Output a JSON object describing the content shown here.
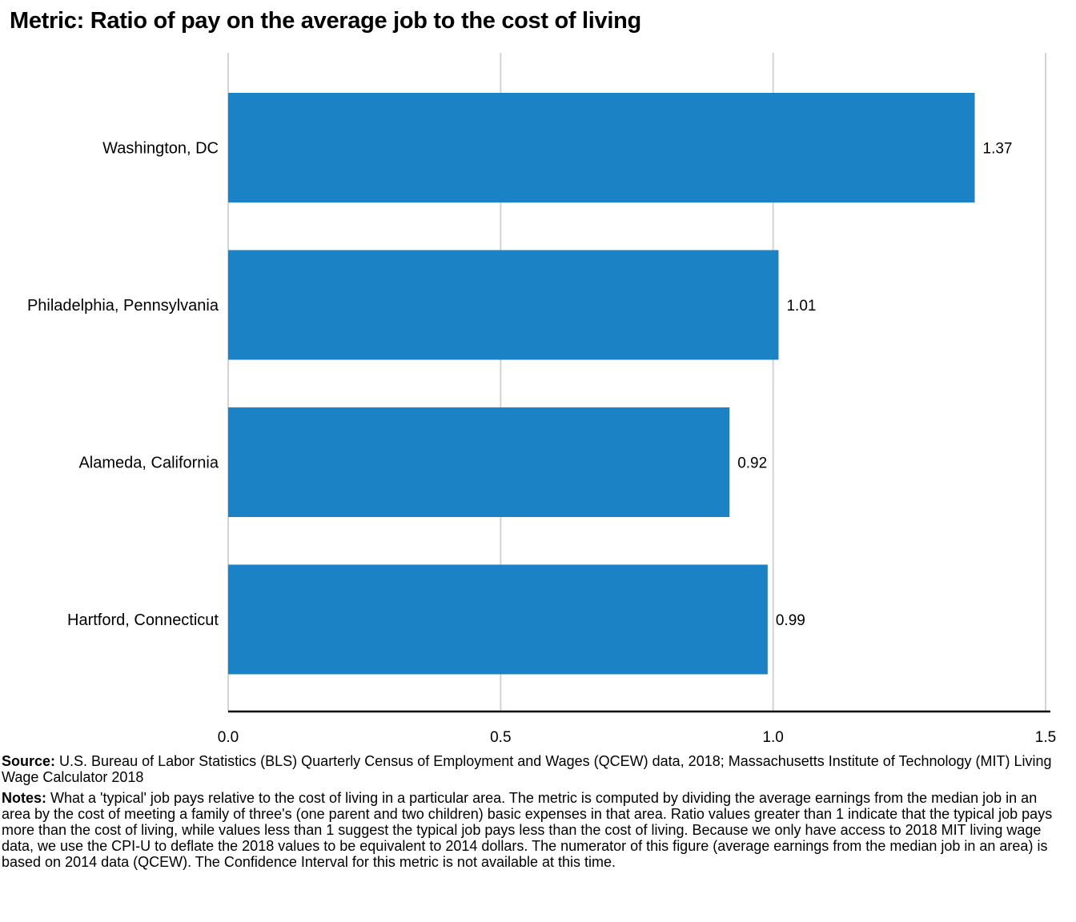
{
  "chart_data": {
    "type": "bar",
    "orientation": "horizontal",
    "title": "Metric: Ratio of pay on the average job to the cost of living",
    "categories": [
      "Washington, DC",
      "Philadelphia, Pennsylvania",
      "Alameda, California",
      "Hartford, Connecticut"
    ],
    "values": [
      1.37,
      1.01,
      0.92,
      0.99
    ],
    "value_labels": [
      "1.37",
      "1.01",
      "0.92",
      "0.99"
    ],
    "xticks": [
      0.0,
      0.5,
      1.0,
      1.5
    ],
    "xtick_labels": [
      "0.0",
      "0.5",
      "1.0",
      "1.5"
    ],
    "xlim": [
      0,
      1.5
    ],
    "xlabel": "",
    "ylabel": "",
    "grid": "vertical",
    "colors": {
      "bar": "#1b82c5",
      "grid": "#d4d4d4",
      "axis": "#000000"
    }
  },
  "footnotes": {
    "source_label": "Source:",
    "source_text": " U.S. Bureau of Labor Statistics (BLS) Quarterly Census of Employment and Wages (QCEW) data, 2018; Massachusetts Institute of Technology (MIT) Living Wage Calculator 2018",
    "notes_label": "Notes:",
    "notes_text": " What a 'typical' job pays relative to the cost of living in a particular area. The metric is computed by dividing the average earnings from the median job in an area by the cost of meeting a family of three's (one parent and two children) basic expenses in that area. Ratio values greater than 1 indicate that the typical job pays more than the cost of living, while values less than 1 suggest the typical job pays less than the cost of living. Because we only have access to 2018 MIT living wage data, we use the CPI-U to deflate the 2018 values to be equivalent to 2014 dollars. The numerator of this figure (average earnings from the median job in an area) is based on 2014 data (QCEW). The Confidence Interval for this metric is not available at this time."
  }
}
